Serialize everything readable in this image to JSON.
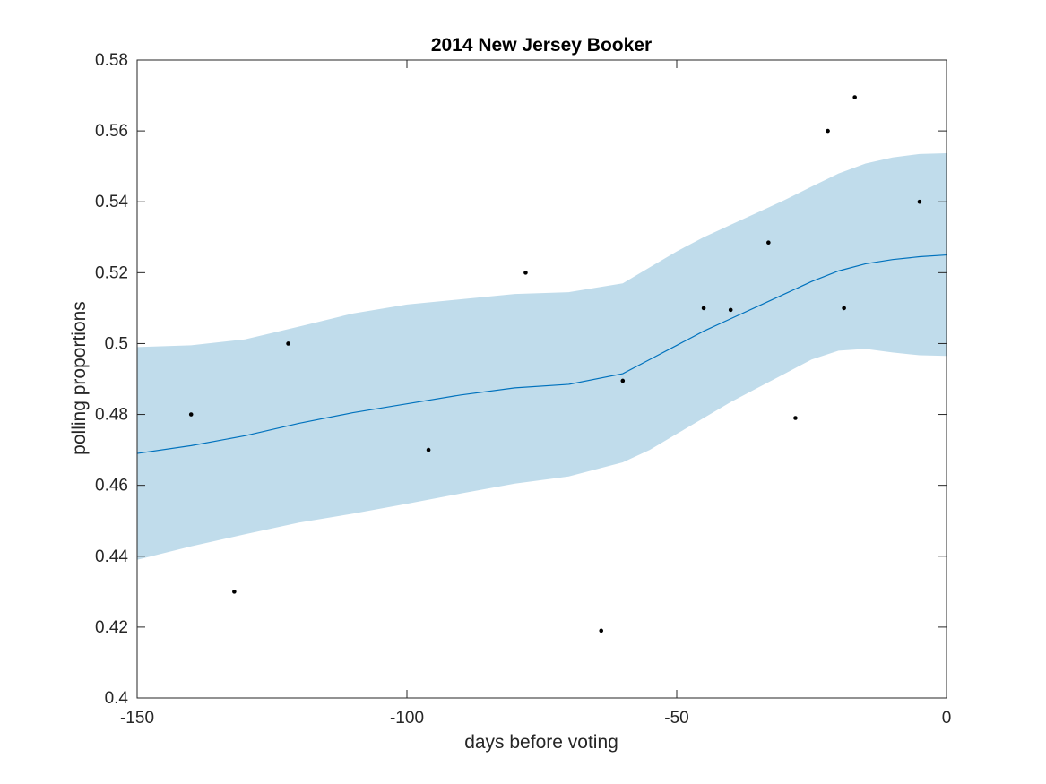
{
  "chart_data": {
    "type": "scatter",
    "title": "2014 New Jersey Booker",
    "xlabel": "days before voting",
    "ylabel": "polling proportions",
    "xlim": [
      -150,
      0
    ],
    "ylim": [
      0.4,
      0.58
    ],
    "xticks": [
      -150,
      -100,
      -50,
      0
    ],
    "xtick_labels": [
      "-150",
      "-100",
      "-50",
      "0"
    ],
    "yticks": [
      0.4,
      0.42,
      0.44,
      0.46,
      0.48,
      0.5,
      0.52,
      0.54,
      0.56,
      0.58
    ],
    "ytick_labels": [
      "0.4",
      "0.42",
      "0.44",
      "0.46",
      "0.48",
      "0.5",
      "0.52",
      "0.54",
      "0.56",
      "0.58"
    ],
    "grid": false,
    "colors": {
      "points": "#000000",
      "fit_line": "#0072BD",
      "band": "#C0DCEB",
      "axes": "#262626"
    },
    "series": [
      {
        "type": "scatter",
        "x": [
          -140,
          -132,
          -122,
          -96,
          -78,
          -64,
          -60,
          -45,
          -40,
          -33,
          -28,
          -22,
          -19,
          -17,
          -5
        ],
        "y": [
          0.48,
          0.43,
          0.5,
          0.47,
          0.52,
          0.419,
          0.4895,
          0.51,
          0.5095,
          0.5285,
          0.479,
          0.56,
          0.51,
          0.5695,
          0.54
        ]
      },
      {
        "type": "line",
        "x": [
          -150,
          -140,
          -130,
          -120,
          -110,
          -100,
          -90,
          -80,
          -70,
          -60,
          -55,
          -50,
          -45,
          -40,
          -35,
          -30,
          -25,
          -20,
          -15,
          -10,
          -5,
          0
        ],
        "y": [
          0.469,
          0.4712,
          0.474,
          0.4775,
          0.4805,
          0.483,
          0.4855,
          0.4875,
          0.4885,
          0.4915,
          0.4955,
          0.4995,
          0.5035,
          0.507,
          0.5105,
          0.514,
          0.5175,
          0.5205,
          0.5225,
          0.5237,
          0.5245,
          0.525
        ]
      },
      {
        "type": "area",
        "x": [
          -150,
          -140,
          -130,
          -120,
          -110,
          -100,
          -90,
          -80,
          -70,
          -60,
          -55,
          -50,
          -45,
          -40,
          -35,
          -30,
          -25,
          -20,
          -15,
          -10,
          -5,
          0
        ],
        "upper": [
          0.499,
          0.4995,
          0.5012,
          0.5048,
          0.5085,
          0.511,
          0.5125,
          0.514,
          0.5145,
          0.517,
          0.5215,
          0.526,
          0.53,
          0.5335,
          0.537,
          0.5405,
          0.5443,
          0.548,
          0.5508,
          0.5525,
          0.5535,
          0.5537
        ],
        "lower": [
          0.439,
          0.4428,
          0.4462,
          0.4495,
          0.452,
          0.4548,
          0.4577,
          0.4605,
          0.4625,
          0.4665,
          0.47,
          0.4745,
          0.479,
          0.4835,
          0.4875,
          0.4915,
          0.4955,
          0.498,
          0.4985,
          0.4975,
          0.4967,
          0.4965
        ]
      }
    ]
  }
}
